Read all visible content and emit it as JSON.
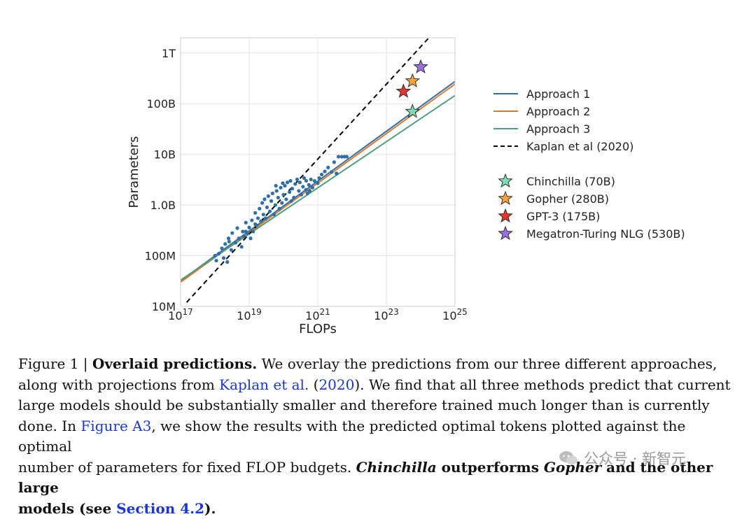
{
  "chart_data": {
    "type": "line",
    "xlabel": "FLOPs",
    "ylabel": "Parameters",
    "x_scale": "log",
    "y_scale": "log",
    "xlim": [
      1e+17,
      1e+25
    ],
    "ylim": [
      10000000.0,
      2000000000000.0
    ],
    "grid": true,
    "x_ticks": [
      {
        "value": 1e+17,
        "base": "10",
        "exp": "17"
      },
      {
        "value": 1e+19,
        "base": "10",
        "exp": "19"
      },
      {
        "value": 1e+21,
        "base": "10",
        "exp": "21"
      },
      {
        "value": 1e+23,
        "base": "10",
        "exp": "23"
      },
      {
        "value": 1e+25,
        "base": "10",
        "exp": "25"
      }
    ],
    "y_ticks": [
      {
        "value": 10000000.0,
        "label": "10M"
      },
      {
        "value": 100000000.0,
        "label": "100M"
      },
      {
        "value": 1000000000.0,
        "label": "1.0B"
      },
      {
        "value": 10000000000.0,
        "label": "10B"
      },
      {
        "value": 100000000000.0,
        "label": "100B"
      },
      {
        "value": 1000000000000.0,
        "label": "1T"
      }
    ],
    "legend_position": "right",
    "series": [
      {
        "name": "Approach 1",
        "color": "#2f6fa6",
        "x": [
          1e+17,
          1e+25
        ],
        "y": [
          32000000.0,
          275000000000.0
        ]
      },
      {
        "name": "Approach 2",
        "color": "#dd7a2f",
        "x": [
          1e+17,
          1e+25
        ],
        "y": [
          30000000.0,
          245000000000.0
        ]
      },
      {
        "name": "Approach 3",
        "color": "#4e9e80",
        "x": [
          1e+17,
          1e+25
        ],
        "y": [
          33000000.0,
          145000000000.0
        ]
      },
      {
        "name": "Kaplan et al (2020)",
        "color": "#000000",
        "dashed": true,
        "x": [
          1.5e+17,
          3e+24
        ],
        "y": [
          12000000.0,
          3000000000000.0
        ]
      }
    ],
    "models": [
      {
        "name": "Chinchilla (70B)",
        "color": "#7fdbb6",
        "x": 5.76e+23,
        "y": 70000000000.0
      },
      {
        "name": "Gopher (280B)",
        "color": "#f2a33a",
        "x": 5.76e+23,
        "y": 280000000000.0
      },
      {
        "name": "GPT-3 (175B)",
        "color": "#e0382b",
        "x": 3.14e+23,
        "y": 175000000000.0
      },
      {
        "name": "Megatron-Turing NLG (530B)",
        "color": "#9b6fe0",
        "x": 1e+24,
        "y": 530000000000.0
      }
    ],
    "observations": {
      "color": "#2f6fa6",
      "points": [
        [
          1e+18,
          100000000.0
        ],
        [
          1.3e+18,
          110000000.0
        ],
        [
          1.1e+18,
          80000000.0
        ],
        [
          1.6e+18,
          140000000.0
        ],
        [
          1.8e+18,
          90000000.0
        ],
        [
          2e+18,
          170000000.0
        ],
        [
          2.3e+18,
          75000000.0
        ],
        [
          2.5e+18,
          220000000.0
        ],
        [
          3e+18,
          130000000.0
        ],
        [
          3.2e+18,
          280000000.0
        ],
        [
          4e+18,
          180000000.0
        ],
        [
          4.5e+18,
          350000000.0
        ],
        [
          5e+18,
          220000000.0
        ],
        [
          6e+18,
          150000000.0
        ],
        [
          6.5e+18,
          300000000.0
        ],
        [
          7e+18,
          240000000.0
        ],
        [
          8e+18,
          450000000.0
        ],
        [
          9e+18,
          280000000.0
        ],
        [
          1e+19,
          360000000.0
        ],
        [
          1.1e+19,
          220000000.0
        ],
        [
          1.2e+19,
          500000000.0
        ],
        [
          1.3e+19,
          300000000.0
        ],
        [
          1.5e+19,
          700000000.0
        ],
        [
          1.6e+19,
          400000000.0
        ],
        [
          1.8e+19,
          550000000.0
        ],
        [
          2e+19,
          850000000.0
        ],
        [
          2.2e+19,
          480000000.0
        ],
        [
          2.4e+19,
          1100000000.0
        ],
        [
          2.6e+19,
          650000000.0
        ],
        [
          2.8e+19,
          1300000000.0
        ],
        [
          3e+19,
          550000000.0
        ],
        [
          3.3e+19,
          900000000.0
        ],
        [
          3.6e+19,
          1500000000.0
        ],
        [
          4e+19,
          750000000.0
        ],
        [
          4.4e+19,
          1200000000.0
        ],
        [
          4.8e+19,
          1700000000.0
        ],
        [
          5.3e+19,
          650000000.0
        ],
        [
          5.8e+19,
          1000000000.0
        ],
        [
          6.3e+19,
          1900000000.0
        ],
        [
          7e+19,
          1400000000.0
        ],
        [
          7.6e+19,
          850000000.0
        ],
        [
          8.3e+19,
          2200000000.0
        ],
        [
          9e+19,
          1100000000.0
        ],
        [
          1e+20,
          1600000000.0
        ],
        [
          1.1e+20,
          2400000000.0
        ],
        [
          1.2e+20,
          1300000000.0
        ],
        [
          1.3e+20,
          2800000000.0
        ],
        [
          1.5e+20,
          1800000000.0
        ],
        [
          1.6e+20,
          3000000000.0
        ],
        [
          1.8e+20,
          2100000000.0
        ],
        [
          2e+20,
          1400000000.0
        ],
        [
          2.2e+20,
          2600000000.0
        ],
        [
          2.5e+20,
          3200000000.0
        ],
        [
          2.8e+20,
          1900000000.0
        ],
        [
          3e+20,
          2800000000.0
        ],
        [
          3.3e+20,
          1600000000.0
        ],
        [
          3.7e+20,
          2300000000.0
        ],
        [
          4e+20,
          3400000000.0
        ],
        [
          4.5e+20,
          2000000000.0
        ],
        [
          5e+20,
          1700000000.0
        ],
        [
          5.5e+20,
          2500000000.0
        ],
        [
          6.3e+20,
          3200000000.0
        ],
        [
          7e+20,
          2200000000.0
        ],
        [
          8e+20,
          3000000000.0
        ],
        [
          1e+21,
          2700000000.0
        ],
        [
          1.1e+21,
          3400000000.0
        ],
        [
          1.3e+21,
          4000000000.0
        ],
        [
          1.6e+21,
          4600000000.0
        ],
        [
          2e+21,
          5500000000.0
        ],
        [
          2.5e+21,
          4500000000.0
        ],
        [
          3e+21,
          7000000000.0
        ],
        [
          3.5e+21,
          4200000000.0
        ],
        [
          4e+21,
          9000000000.0
        ],
        [
          5e+21,
          9000000000.0
        ],
        [
          6e+21,
          9000000000.0
        ],
        [
          7e+21,
          9000000000.0
        ],
        [
          1.5e+19,
          420000000.0
        ],
        [
          8e+18,
          300000000.0
        ],
        [
          2.6e+18,
          190000000.0
        ],
        [
          1.7e+20,
          1200000000.0
        ],
        [
          9.5e+19,
          2700000000.0
        ],
        [
          6e+19,
          2400000000.0
        ],
        [
          4.6e+20,
          3000000000.0
        ],
        [
          5.8e+20,
          1900000000.0
        ]
      ]
    }
  },
  "caption": {
    "l1_a": "Figure 1 | ",
    "l1_bold": "Overlaid predictions.",
    "l1_b": " We overlay the predictions from our three different approaches,",
    "l2_a": "along with projections from ",
    "l2_link1": "Kaplan et al.",
    "l2_b": " (",
    "l2_link2": "2020",
    "l2_c": "). We find that all three methods predict that current",
    "l3": "large models should be substantially smaller and therefore trained much longer than is currently",
    "l4_a": "done. In ",
    "l4_link": "Figure A3",
    "l4_b": ", we show the results with the predicted optimal tokens plotted against the optimal",
    "l5_a": "number of parameters for fixed FLOP budgets. ",
    "l5_bi1": "Chinchilla",
    "l5_b": " outperforms ",
    "l5_bi2": "Gopher",
    "l5_c": " and the other large",
    "l6_a": "models (see ",
    "l6_link": "Section 4.2",
    "l6_b": ")."
  },
  "watermark": {
    "text": "公众号 · 新智元"
  }
}
